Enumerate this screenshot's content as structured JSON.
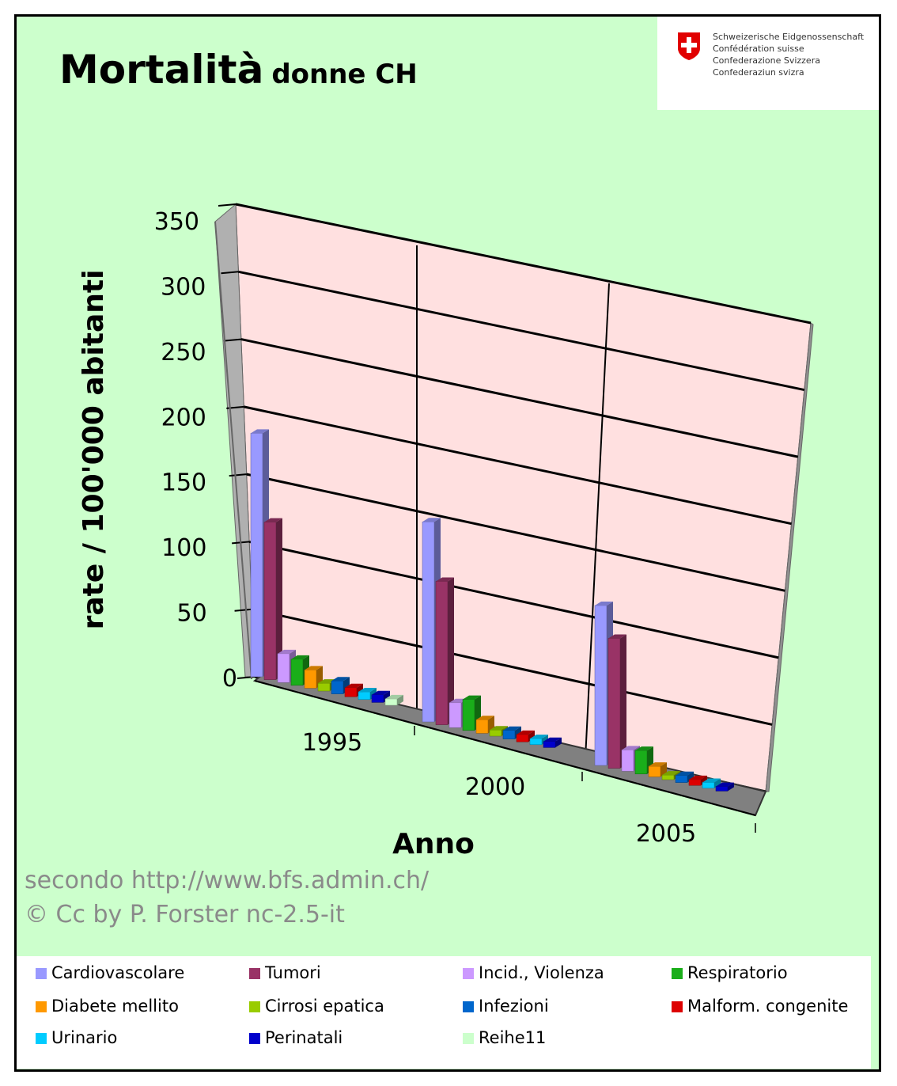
{
  "header": {
    "title_main": "Mortalità",
    "title_sub": "donne CH"
  },
  "logo": {
    "flag_icon": "swiss-flag-icon",
    "lines": [
      "Schweizerische Eidgenossenschaft",
      "Confédération suisse",
      "Confederazione Svizzera",
      "Confederaziun svizra"
    ]
  },
  "credits": {
    "source": "secondo http://www.bfs.admin.ch/",
    "license": "© Cc by P. Forster nc-2.5-it"
  },
  "colors": {
    "background": "#ccffcc",
    "wall": "#ffe0e0",
    "floor": "#808080"
  },
  "chart_data": {
    "type": "bar",
    "title": "Mortalità donne CH",
    "xlabel": "Anno",
    "ylabel": "rate / 100'000 abitanti",
    "ylim": [
      0,
      350
    ],
    "yticks": [
      "0",
      "50",
      "100",
      "150",
      "200",
      "250",
      "300",
      "350"
    ],
    "categories": [
      "1995",
      "2000",
      "2005"
    ],
    "grid": true,
    "legend_position": "bottom",
    "series": [
      {
        "name": "Cardiovascolare",
        "color": "#9999ff",
        "values": [
          185,
          160,
          135
        ]
      },
      {
        "name": "Tumori",
        "color": "#993366",
        "values": [
          120,
          115,
          110
        ]
      },
      {
        "name": "Incid., Violenza",
        "color": "#cc99ff",
        "values": [
          22,
          20,
          18
        ]
      },
      {
        "name": "Respiratorio",
        "color": "#1aae1a",
        "values": [
          20,
          25,
          20
        ]
      },
      {
        "name": "Diabete mellito",
        "color": "#ff9900",
        "values": [
          14,
          11,
          9
        ]
      },
      {
        "name": "Cirrosi epatica",
        "color": "#99cc00",
        "values": [
          6,
          5,
          4
        ]
      },
      {
        "name": "Infezioni",
        "color": "#0066cc",
        "values": [
          10,
          7,
          6
        ]
      },
      {
        "name": "Malform. congenite",
        "color": "#dd0000",
        "values": [
          7,
          6,
          5
        ]
      },
      {
        "name": "Urinario",
        "color": "#00ccff",
        "values": [
          6,
          5,
          5
        ]
      },
      {
        "name": "Perinatali",
        "color": "#0000cc",
        "values": [
          6,
          5,
          4
        ]
      },
      {
        "name": "Reihe11",
        "color": "#ccffcc",
        "values": [
          5,
          0,
          0
        ]
      }
    ]
  }
}
